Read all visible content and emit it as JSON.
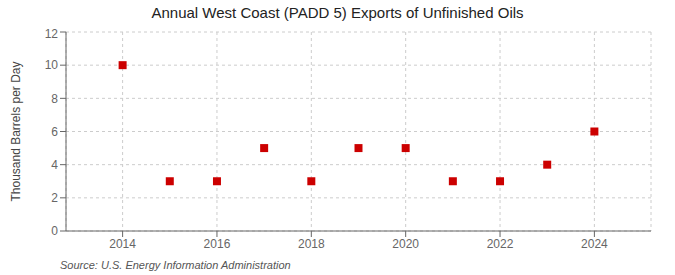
{
  "chart_data": {
    "type": "scatter",
    "title": "Annual West Coast (PADD 5) Exports of Unfinished Oils",
    "ylabel": "Thousand Barrels per Day",
    "annotations": [
      "Source: U.S. Energy Information Administration"
    ],
    "x": [
      2014,
      2015,
      2016,
      2017,
      2018,
      2019,
      2020,
      2021,
      2022,
      2023,
      2024
    ],
    "values": [
      10,
      3,
      3,
      5,
      3,
      5,
      5,
      3,
      3,
      4,
      6
    ],
    "color": "#cc0000",
    "marker": "square",
    "xlim": [
      2012.8,
      2025.2
    ],
    "ylim": [
      0,
      12
    ],
    "xticks": [
      2014,
      2016,
      2018,
      2020,
      2022,
      2024
    ],
    "yticks": [
      0,
      2,
      4,
      6,
      8,
      10,
      12
    ],
    "grid": true
  }
}
